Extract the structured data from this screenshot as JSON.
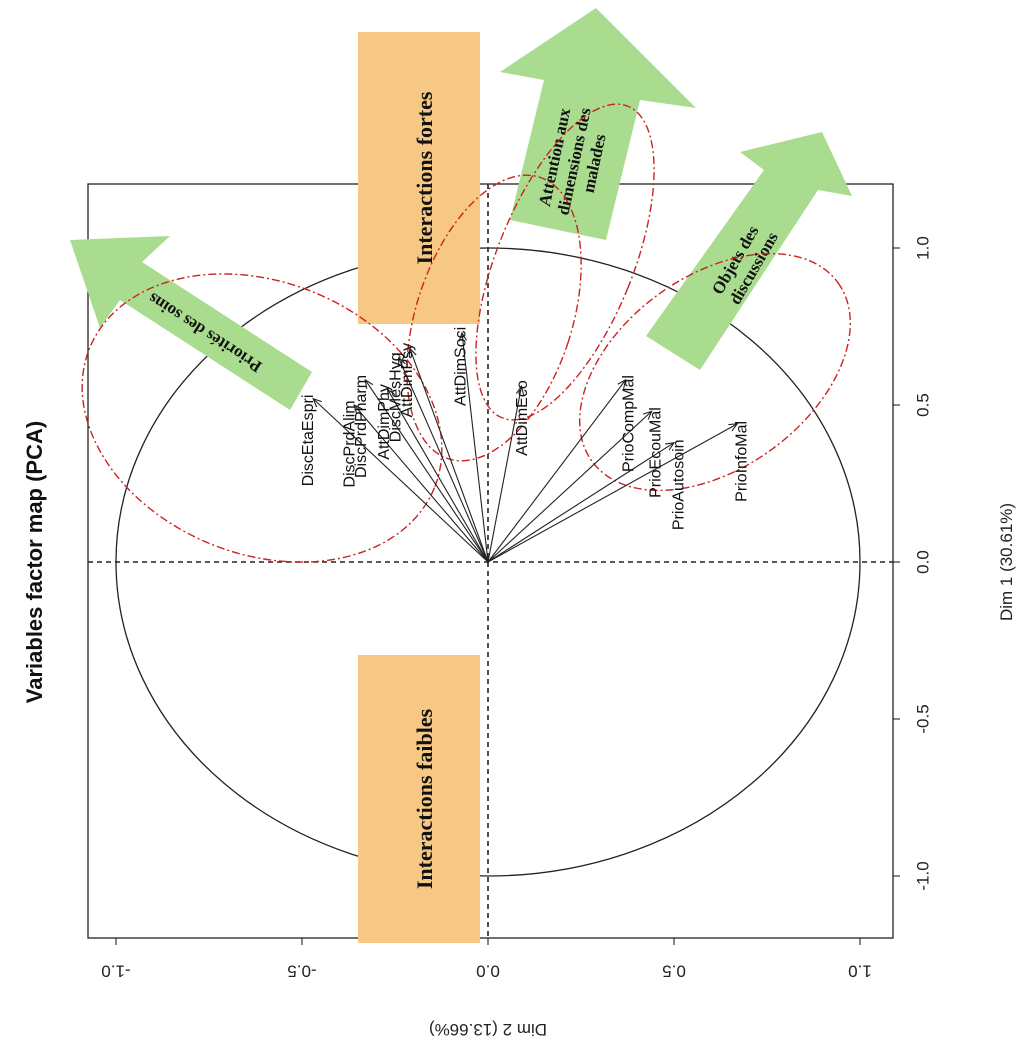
{
  "chart_data": {
    "type": "scatter",
    "title": "Variables factor map (PCA)",
    "xlabel": "Dim 1 (30.61%)",
    "ylabel": "Dim 2 (13.66%)",
    "xlim": [
      -1.2,
      1.2
    ],
    "ylim": [
      -1.0,
      1.0
    ],
    "x_ticks": [
      "-1.0",
      "-0.5",
      "0.0",
      "0.5",
      "1.0"
    ],
    "y_ticks": [
      "1.0",
      "0.5",
      "0.0",
      "-0.5",
      "-1.0"
    ],
    "grid": false,
    "variables": [
      {
        "name": "PrioInfoMal",
        "dim1": 0.44,
        "dim2": 0.67
      },
      {
        "name": "PrioAutosoin",
        "dim1": 0.38,
        "dim2": 0.5
      },
      {
        "name": "PrioEcouMal",
        "dim1": 0.48,
        "dim2": 0.44
      },
      {
        "name": "PrioCompMal",
        "dim1": 0.58,
        "dim2": 0.37
      },
      {
        "name": "AttDimEco",
        "dim1": 0.56,
        "dim2": 0.09
      },
      {
        "name": "AttDimSoci",
        "dim1": 0.73,
        "dim2": -0.07
      },
      {
        "name": "DiscMesHyg",
        "dim1": 0.65,
        "dim2": -0.24
      },
      {
        "name": "AttDimPsy",
        "dim1": 0.68,
        "dim2": -0.21
      },
      {
        "name": "AttDimPhy",
        "dim1": 0.55,
        "dim2": -0.27
      },
      {
        "name": "DiscPrdPharm",
        "dim1": 0.58,
        "dim2": -0.33
      },
      {
        "name": "DiscPrdAlim",
        "dim1": 0.5,
        "dim2": -0.36
      },
      {
        "name": "DiscEtaEspri",
        "dim1": 0.52,
        "dim2": -0.47
      }
    ],
    "annotations": {
      "interactions_fortes": "Interactions fortes",
      "interactions_faibles": "Interactions faibles",
      "priorites": "Priorités des soins",
      "attention_lines": [
        "Attention aux",
        "dimensions des",
        "malades"
      ],
      "objets_lines": [
        "Objets des",
        "discussions"
      ]
    },
    "colors": {
      "arrows": "#222222",
      "ellipses": "#cc2222",
      "boxes": "#f7c883",
      "green_arrows": "#a9dc8f"
    }
  }
}
